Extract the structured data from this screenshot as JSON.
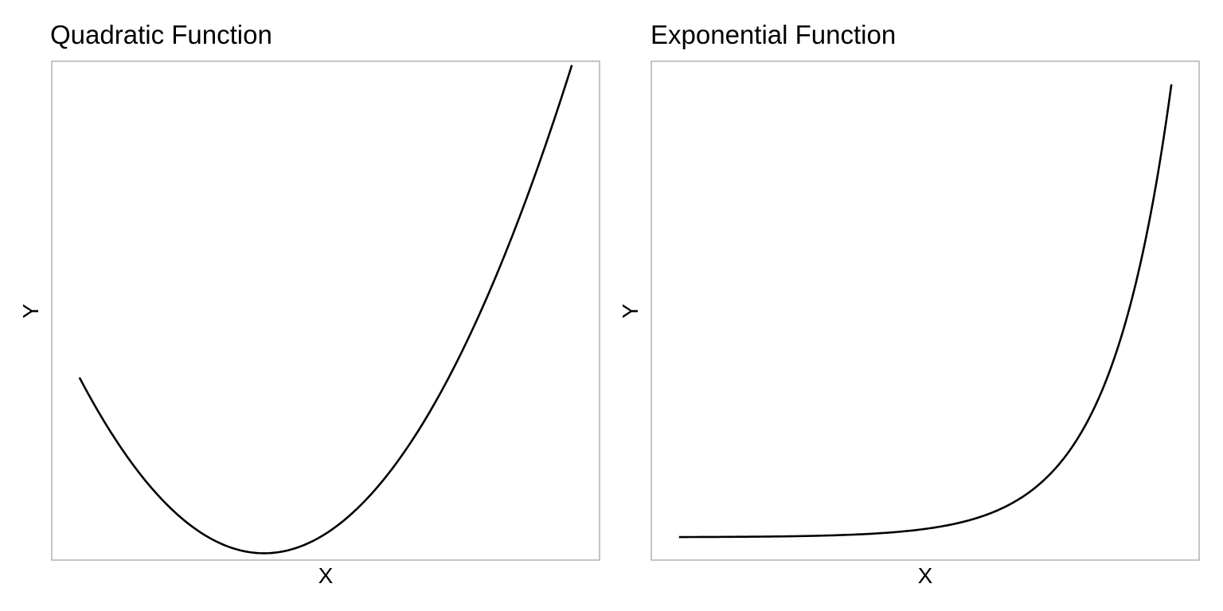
{
  "chart_data": [
    {
      "type": "line",
      "title": "Quadratic Function",
      "xlabel": "X",
      "ylabel": "Y",
      "x_ticks_shown": false,
      "y_ticks_shown": false,
      "grid": false,
      "legend": "none",
      "xlim": [
        -3.45,
        5.45
      ],
      "ylim": [
        -0.35,
        25.2
      ],
      "series": [
        {
          "color": "#000000",
          "x": [
            -3.0,
            -2.5,
            -2.0,
            -1.5,
            -1.0,
            -0.5,
            0.0,
            0.5,
            1.0,
            1.5,
            2.0,
            2.5,
            3.0,
            3.5,
            4.0,
            4.5,
            5.0
          ],
          "y": [
            9.0,
            6.25,
            4.0,
            2.25,
            1.0,
            0.25,
            0.0,
            0.25,
            1.0,
            2.25,
            4.0,
            6.25,
            9.0,
            12.25,
            16.0,
            20.25,
            25.0
          ]
        }
      ]
    },
    {
      "type": "line",
      "title": "Exponential Function",
      "xlabel": "X",
      "ylabel": "Y",
      "x_ticks_shown": false,
      "y_ticks_shown": false,
      "grid": false,
      "legend": "none",
      "xlim": [
        -3.45,
        5.45
      ],
      "ylim": [
        -7.5,
        156.0
      ],
      "series": [
        {
          "color": "#000000",
          "x": [
            -3.0,
            -2.5,
            -2.0,
            -1.5,
            -1.0,
            -0.5,
            0.0,
            0.5,
            1.0,
            1.5,
            2.0,
            2.5,
            3.0,
            3.5,
            4.0,
            4.5,
            5.0
          ],
          "y": [
            0.05,
            0.08,
            0.14,
            0.22,
            0.37,
            0.61,
            1.0,
            1.65,
            2.72,
            4.48,
            7.39,
            12.18,
            20.09,
            33.12,
            54.6,
            90.02,
            148.41
          ]
        }
      ]
    }
  ]
}
